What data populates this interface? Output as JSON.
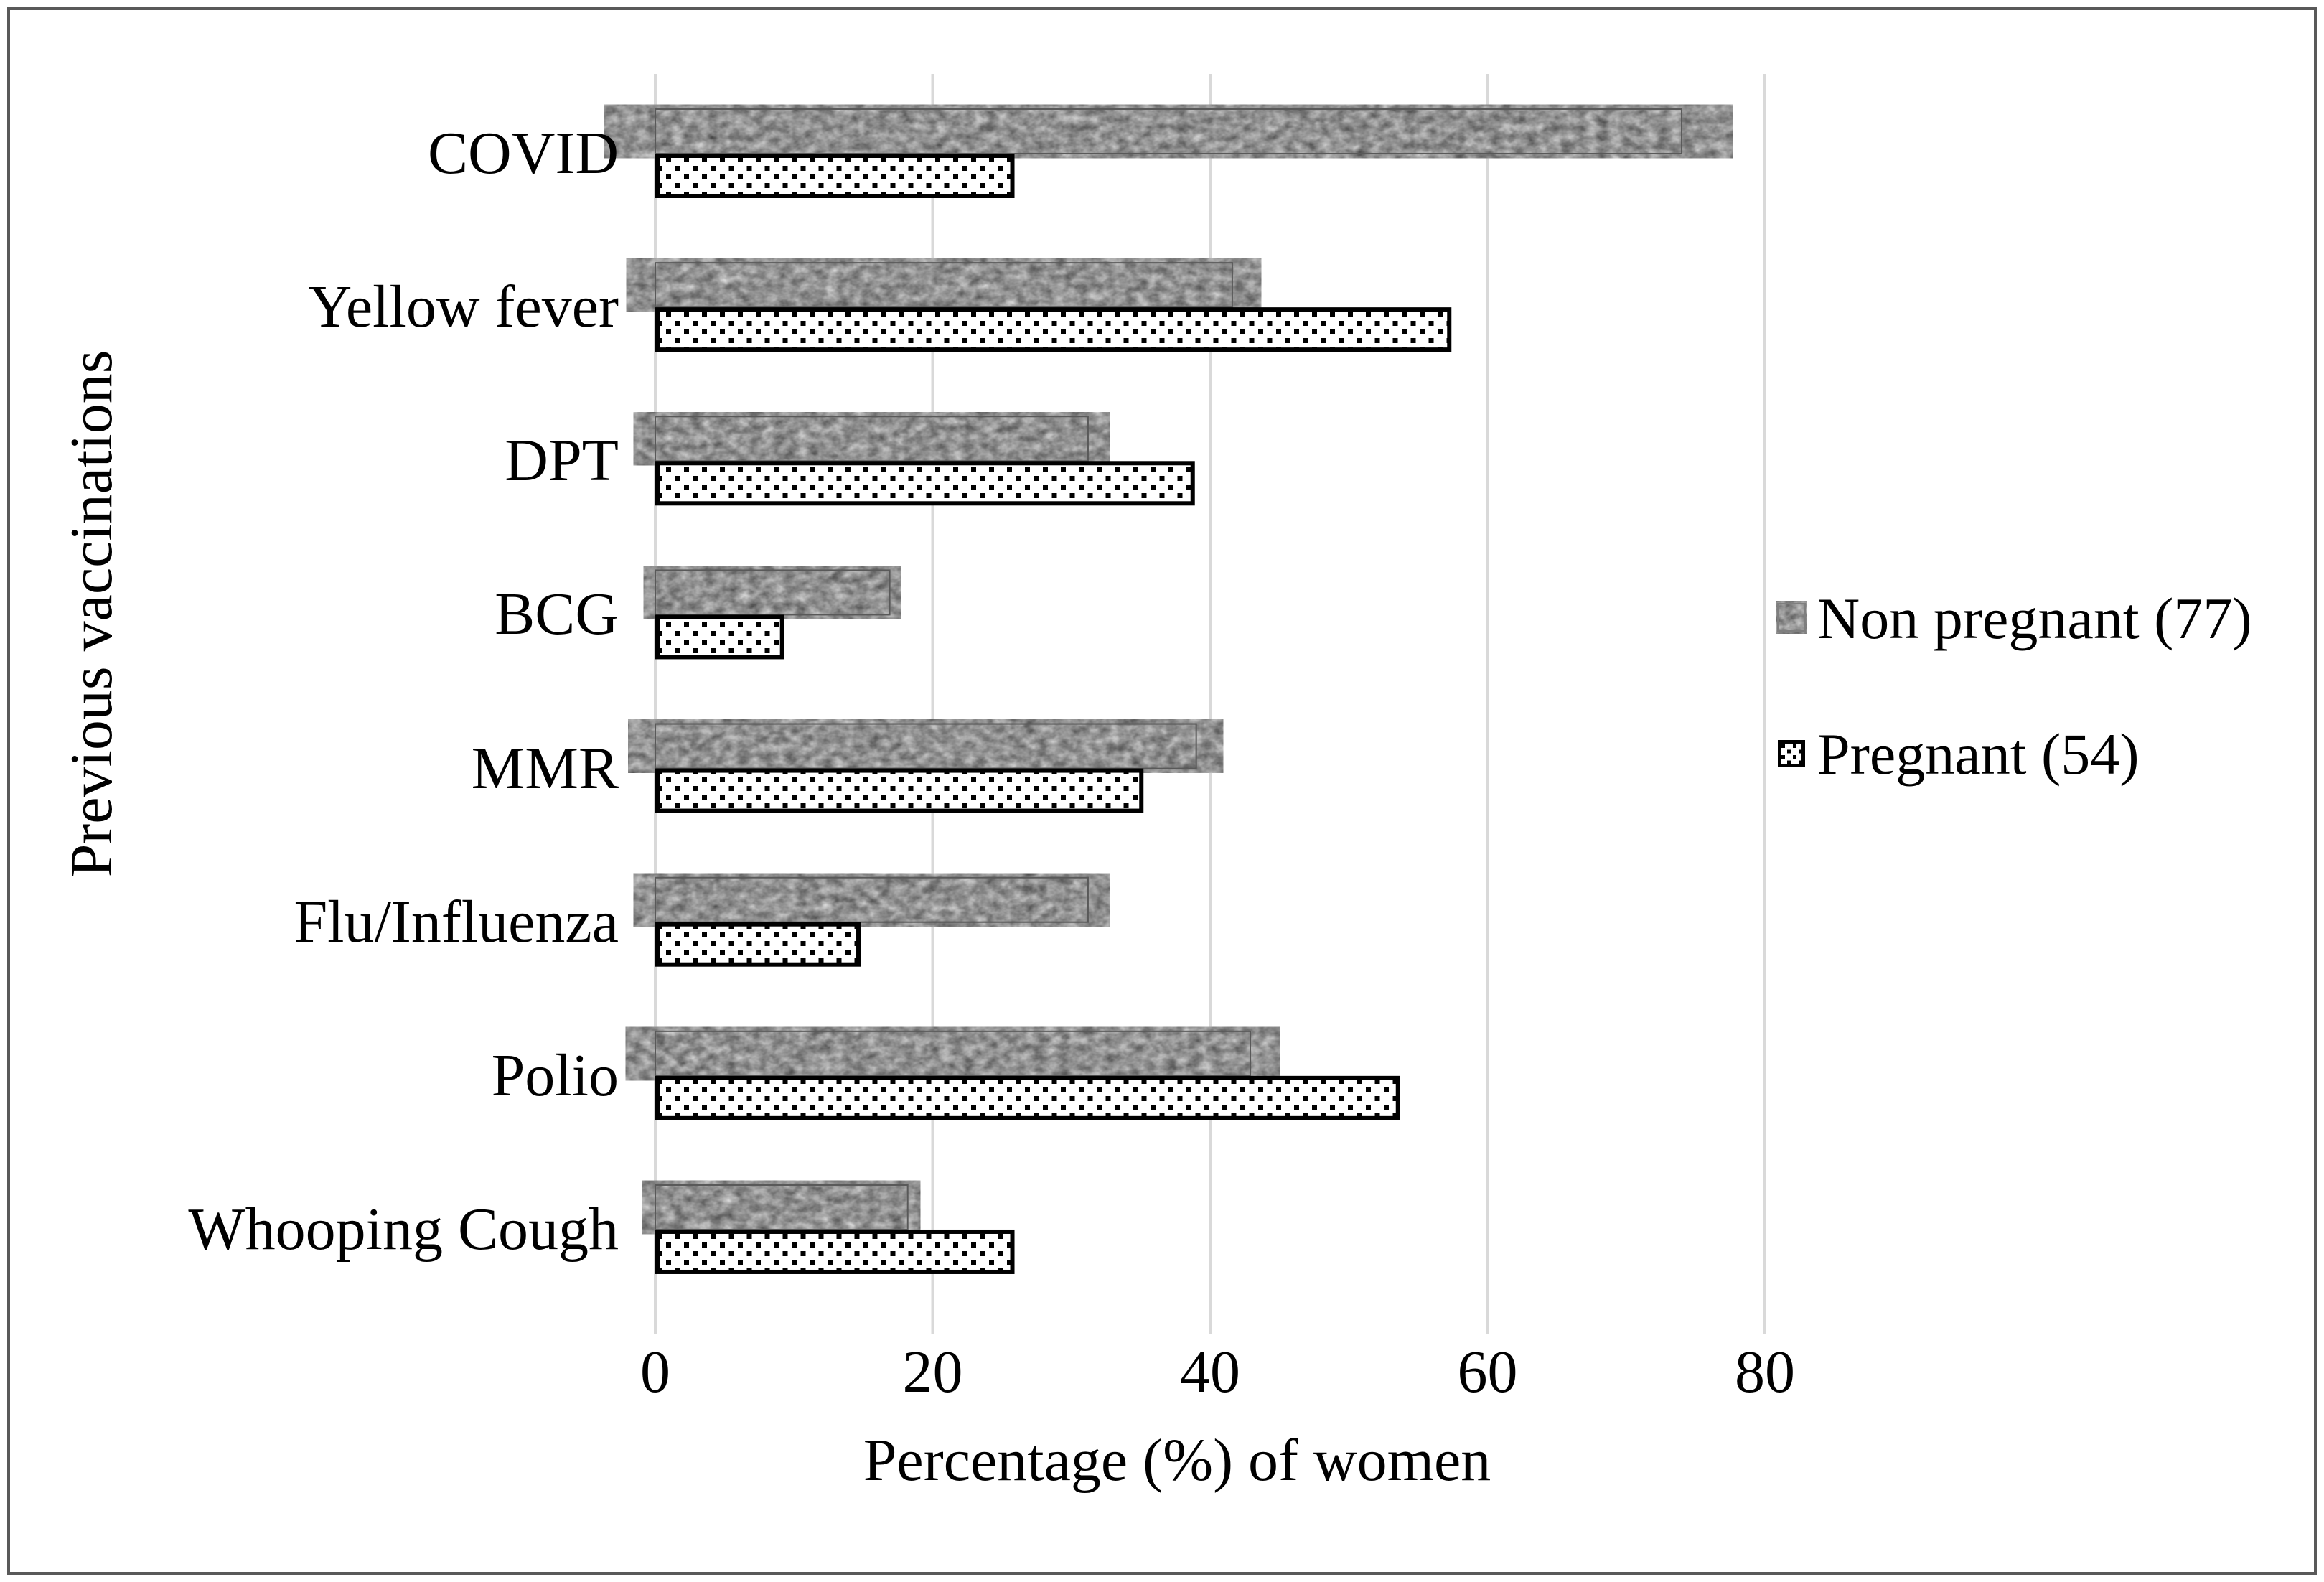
{
  "figure": {
    "background": "#ffffff",
    "border_color": "#595959"
  },
  "colors": {
    "gridline": "#d9d9d9",
    "bar_outline_gray": "#595959",
    "bar_outline_dotted": "#000000",
    "text": "#000000"
  },
  "legend": {
    "position": "right",
    "items": [
      {
        "label": "Non pregnant (77)",
        "swatch": "gray-speckle-texture"
      },
      {
        "label": "Pregnant (54)",
        "swatch": "white-with-black-dots"
      }
    ]
  },
  "chart_data": {
    "type": "bar",
    "orientation": "horizontal",
    "title": "",
    "xlabel": "Percentage (%) of women",
    "ylabel": "Previous vaccinations",
    "xlim": [
      0,
      80
    ],
    "x_ticks": [
      0,
      20,
      40,
      60,
      80
    ],
    "grid": true,
    "legend_position": "right",
    "categories": [
      "COVID",
      "Yellow fever",
      "DPT",
      "BCG",
      "MMR",
      "Flu/Influenza",
      "Polio",
      "Whooping Cough"
    ],
    "series": [
      {
        "name": "Non pregnant (77)",
        "style": "gray-speckle",
        "values": [
          74.0,
          41.6,
          31.2,
          16.9,
          39.0,
          31.2,
          42.9,
          18.2
        ]
      },
      {
        "name": "Pregnant (54)",
        "style": "dotted",
        "values": [
          25.9,
          57.4,
          38.9,
          9.3,
          35.2,
          14.8,
          53.7,
          25.9
        ]
      }
    ]
  }
}
